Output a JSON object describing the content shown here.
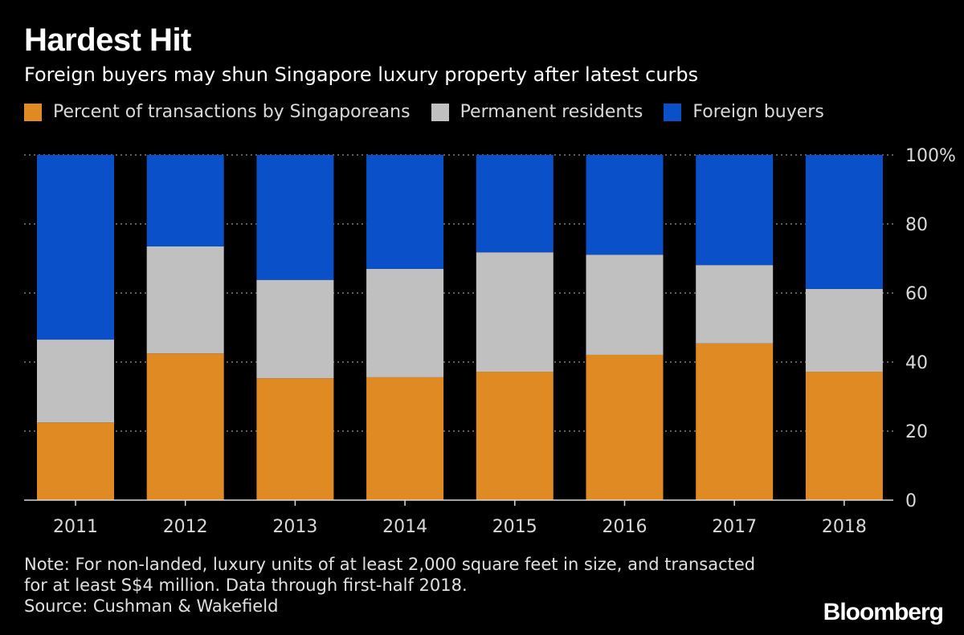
{
  "header": {
    "title": "Hardest Hit",
    "subtitle": "Foreign buyers may shun Singapore luxury property after latest curbs"
  },
  "legend": {
    "items": [
      {
        "label": "Percent of transactions by Singaporeans",
        "color": "#e08a23"
      },
      {
        "label": "Permanent residents",
        "color": "#c0c0c0"
      },
      {
        "label": "Foreign buyers",
        "color": "#0a50c8"
      }
    ]
  },
  "chart_data": {
    "type": "bar",
    "stacked": true,
    "categories": [
      "2011",
      "2012",
      "2013",
      "2014",
      "2015",
      "2016",
      "2017",
      "2018"
    ],
    "series": [
      {
        "name": "Percent of transactions by Singaporeans",
        "color": "#e08a23",
        "values": [
          22.5,
          42.5,
          35.3,
          35.6,
          37.2,
          42.1,
          45.4,
          37.2
        ]
      },
      {
        "name": "Permanent residents",
        "color": "#c0c0c0",
        "values": [
          24.0,
          31.0,
          28.5,
          31.4,
          34.6,
          29.0,
          22.7,
          24.0
        ]
      },
      {
        "name": "Foreign buyers",
        "color": "#0a50c8",
        "values": [
          53.5,
          26.5,
          36.2,
          33.0,
          28.2,
          28.9,
          31.9,
          38.8
        ]
      }
    ],
    "y_ticks": [
      {
        "value": 0,
        "label": "0"
      },
      {
        "value": 20,
        "label": "20"
      },
      {
        "value": 40,
        "label": "40"
      },
      {
        "value": 60,
        "label": "60"
      },
      {
        "value": 80,
        "label": "80"
      },
      {
        "value": 100,
        "label": "100%"
      }
    ],
    "ylim": [
      0,
      100
    ],
    "grid": true,
    "y_axis_side": "right",
    "legend_position": "top-left"
  },
  "notes": {
    "line1": "Note: For non-landed, luxury units of at least 2,000 square feet in size, and transacted",
    "line2": "for at least S$4 million. Data through first-half 2018.",
    "source": "Source: Cushman & Wakefield"
  },
  "brand": "Bloomberg"
}
